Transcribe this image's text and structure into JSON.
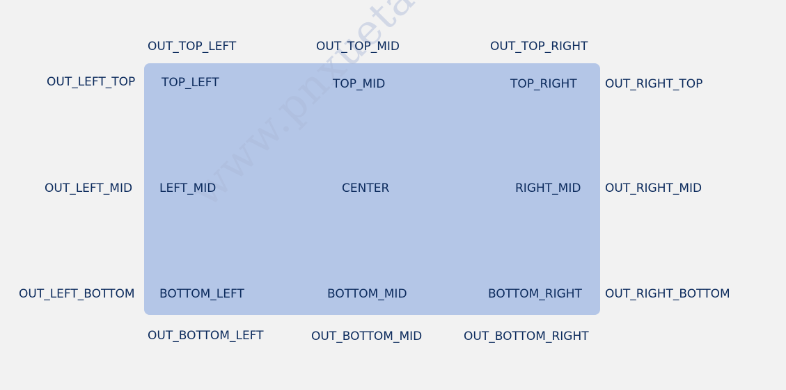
{
  "labels": {
    "out_top_left": "OUT_TOP_LEFT",
    "out_top_mid": "OUT_TOP_MID",
    "out_top_right": "OUT_TOP_RIGHT",
    "out_left_top": "OUT_LEFT_TOP",
    "out_left_mid": "OUT_LEFT_MID",
    "out_left_bottom": "OUT_LEFT_BOTTOM",
    "out_right_top": "OUT_RIGHT_TOP",
    "out_right_mid": "OUT_RIGHT_MID",
    "out_right_bottom": "OUT_RIGHT_BOTTOM",
    "out_bottom_left": "OUT_BOTTOM_LEFT",
    "out_bottom_mid": "OUT_BOTTOM_MID",
    "out_bottom_right": "OUT_BOTTOM_RIGHT",
    "top_left": "TOP_LEFT",
    "top_mid": "TOP_MID",
    "top_right": "TOP_RIGHT",
    "left_mid": "LEFT_MID",
    "center": "CENTER",
    "right_mid": "RIGHT_MID",
    "bottom_left": "BOTTOM_LEFT",
    "bottom_mid": "BOTTOM_MID",
    "bottom_right": "BOTTOM_RIGHT"
  },
  "watermark": {
    "text": "www.pnxuetang.com"
  },
  "colors": {
    "background": "#f2f2f2",
    "box_fill": "#b4c6e7",
    "text": "#0b2a5c"
  }
}
